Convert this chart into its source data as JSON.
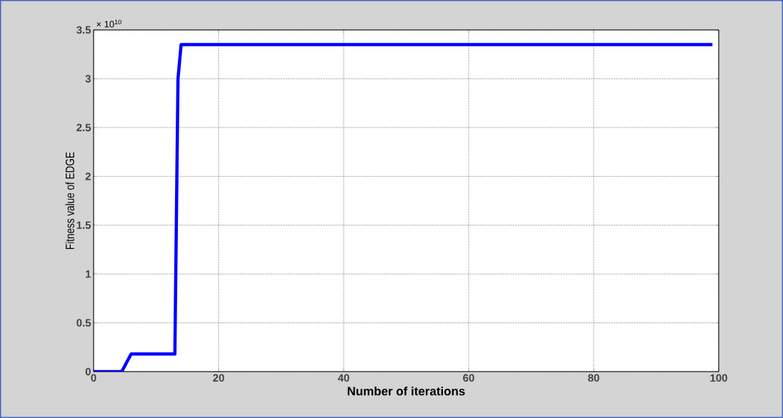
{
  "chart_data": {
    "type": "line",
    "xlabel": "Number of iterations",
    "ylabel": "Fitness value of EDGE",
    "annotations": [
      "× 10$^{10}$"
    ],
    "x": [
      0,
      4.5,
      6,
      13,
      13.5,
      14,
      99
    ],
    "series": [
      {
        "color": "#0000ff",
        "values": [
          0,
          0,
          0.18,
          0.18,
          3.0,
          3.35,
          3.35
        ]
      }
    ],
    "xlim": [
      0,
      100
    ],
    "xticks": [
      0,
      20,
      40,
      60,
      80,
      100
    ],
    "ylim": [
      0,
      3.5
    ],
    "yticks": [
      0,
      0.5,
      1,
      1.5,
      2,
      2.5,
      3,
      3.5
    ],
    "grid": true,
    "marker": "none",
    "line_style": "solid"
  }
}
